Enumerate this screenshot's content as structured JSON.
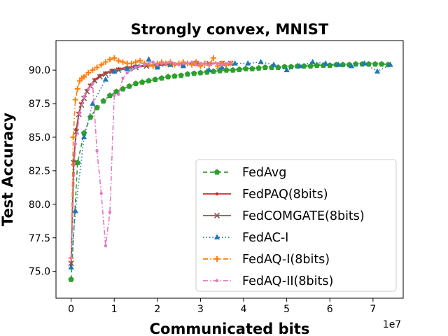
{
  "chart_data": {
    "type": "line",
    "title": "Strongly convex, MNIST",
    "xlabel": "Communicated bits",
    "ylabel": "Test Accuracy",
    "x_multiplier_label": "1e7",
    "xlim": [
      -0.35,
      7.7
    ],
    "ylim": [
      73.0,
      92.2
    ],
    "xticks": [
      0,
      1,
      2,
      3,
      4,
      5,
      6,
      7
    ],
    "xtick_labels": [
      "0",
      "1",
      "2",
      "3",
      "4",
      "5",
      "6",
      "7"
    ],
    "yticks": [
      75.0,
      77.5,
      80.0,
      82.5,
      85.0,
      87.5,
      90.0
    ],
    "ytick_labels": [
      "75.0",
      "77.5",
      "80.0",
      "82.5",
      "85.0",
      "87.5",
      "90.0"
    ],
    "grid": false,
    "legend_position": "lower-right",
    "series": [
      {
        "name": "FedAvg",
        "color": "#2ca02c",
        "linestyle": "dashed",
        "marker": "pentagon",
        "x": [
          0.0,
          0.15,
          0.3,
          0.45,
          0.6,
          0.75,
          0.9,
          1.05,
          1.2,
          1.35,
          1.5,
          1.65,
          1.8,
          1.95,
          2.1,
          2.25,
          2.4,
          2.55,
          2.7,
          2.85,
          3.0,
          3.15,
          3.3,
          3.45,
          3.6,
          3.75,
          3.9,
          4.05,
          4.2,
          4.35,
          4.5,
          4.65,
          4.8,
          4.95,
          5.1,
          5.25,
          5.4,
          5.55,
          5.7,
          5.85,
          6.0,
          6.15,
          6.3,
          6.45,
          6.6,
          6.75,
          6.9,
          7.05,
          7.2,
          7.35
        ],
        "y": [
          74.4,
          83.1,
          85.3,
          86.5,
          87.2,
          87.7,
          88.1,
          88.4,
          88.6,
          88.8,
          89.0,
          89.1,
          89.2,
          89.3,
          89.4,
          89.5,
          89.55,
          89.6,
          89.7,
          89.75,
          89.8,
          89.85,
          89.9,
          89.95,
          90.0,
          90.0,
          90.05,
          90.1,
          90.1,
          90.15,
          90.2,
          90.2,
          90.2,
          90.25,
          90.25,
          90.3,
          90.3,
          90.3,
          90.35,
          90.35,
          90.35,
          90.4,
          90.4,
          90.4,
          90.45,
          90.45,
          90.45,
          90.45,
          90.45,
          90.4
        ]
      },
      {
        "name": "FedPAQ(8bits)",
        "color": "#d62728",
        "linestyle": "solid",
        "marker": "point",
        "x": [
          0.0,
          0.06,
          0.12,
          0.18,
          0.24,
          0.3,
          0.37,
          0.45,
          0.55,
          0.67,
          0.8,
          0.95,
          1.1,
          1.3,
          1.5,
          1.75,
          2.0,
          2.3,
          2.6,
          2.9,
          3.2,
          3.5,
          3.7
        ],
        "y": [
          75.5,
          83.2,
          85.6,
          86.8,
          87.5,
          88.0,
          88.5,
          88.9,
          89.3,
          89.6,
          89.8,
          90.0,
          90.1,
          90.2,
          90.3,
          90.35,
          90.4,
          90.45,
          90.5,
          90.5,
          90.5,
          90.5,
          90.5
        ]
      },
      {
        "name": "FedCOMGATE(8bits)",
        "color": "#8c564b",
        "linestyle": "solid",
        "marker": "x",
        "x": [
          0.0,
          0.06,
          0.12,
          0.18,
          0.24,
          0.3,
          0.37,
          0.45,
          0.55,
          0.67,
          0.8,
          0.95,
          1.1,
          1.3,
          1.5,
          1.75,
          2.0,
          2.3,
          2.6,
          2.9,
          3.2,
          3.5,
          3.7
        ],
        "y": [
          75.6,
          83.1,
          85.4,
          86.7,
          87.4,
          87.9,
          88.4,
          88.8,
          89.2,
          89.5,
          89.7,
          89.9,
          90.0,
          90.1,
          90.2,
          90.3,
          90.35,
          90.4,
          90.45,
          90.5,
          90.5,
          90.5,
          90.5
        ]
      },
      {
        "name": "FedAC-I",
        "color": "#1f77b4",
        "linestyle": "dotted",
        "marker": "triangle",
        "x": [
          0.0,
          0.1,
          0.3,
          0.5,
          0.8,
          1.0,
          1.3,
          1.5,
          1.8,
          2.0,
          2.3,
          2.6,
          2.9,
          3.2,
          3.5,
          3.8,
          4.1,
          4.4,
          4.7,
          5.0,
          5.3,
          5.6,
          5.9,
          6.2,
          6.5,
          6.8,
          7.1,
          7.4
        ],
        "y": [
          75.3,
          79.5,
          85.0,
          87.5,
          89.3,
          89.9,
          90.1,
          90.3,
          90.8,
          90.2,
          90.4,
          90.3,
          90.6,
          90.0,
          90.2,
          90.5,
          90.5,
          90.6,
          90.4,
          90.0,
          90.3,
          90.6,
          90.5,
          90.4,
          90.3,
          90.5,
          89.9,
          90.4
        ]
      },
      {
        "name": "FedAQ-I(8bits)",
        "color": "#ff7f0e",
        "linestyle": "dashdot",
        "marker": "plus",
        "x": [
          0.0,
          0.05,
          0.1,
          0.15,
          0.2,
          0.25,
          0.3,
          0.4,
          0.5,
          0.6,
          0.7,
          0.8,
          0.9,
          1.0,
          1.1,
          1.2,
          1.3,
          1.4,
          1.5,
          1.6,
          1.7,
          1.8,
          1.9,
          2.0,
          2.1,
          2.2,
          2.3,
          2.4,
          2.5,
          2.6,
          2.7,
          2.8,
          2.9,
          3.0,
          3.1,
          3.2,
          3.3,
          3.4,
          3.5,
          3.6,
          3.7
        ],
        "y": [
          76.0,
          85.0,
          87.8,
          88.6,
          89.2,
          89.4,
          89.5,
          89.8,
          90.0,
          90.2,
          90.4,
          90.6,
          90.8,
          90.9,
          90.7,
          90.6,
          90.5,
          90.5,
          90.6,
          90.7,
          90.5,
          90.4,
          90.3,
          90.5,
          90.6,
          90.5,
          90.6,
          90.4,
          90.5,
          90.6,
          90.5,
          90.4,
          90.6,
          90.3,
          90.5,
          90.4,
          90.9,
          90.3,
          90.5,
          90.4,
          90.5
        ]
      },
      {
        "name": "FedAQ-II(8bits)",
        "color": "#e377c2",
        "linestyle": "dashdot",
        "marker": "point",
        "x": [
          0.0,
          0.1,
          0.2,
          0.3,
          0.4,
          0.5,
          0.6,
          0.7,
          0.8,
          0.9,
          1.0,
          1.1,
          1.2,
          1.3,
          1.4,
          1.5,
          1.6,
          1.7,
          1.8,
          1.9,
          2.0,
          2.1,
          2.2,
          2.3,
          2.4,
          2.5,
          2.6,
          2.7,
          2.8,
          2.9,
          3.0,
          3.1,
          3.2,
          3.3,
          3.4,
          3.5,
          3.6,
          3.7
        ],
        "y": [
          76.0,
          84.5,
          86.8,
          88.0,
          88.6,
          89.0,
          84.0,
          80.8,
          76.9,
          79.4,
          88.1,
          88.2,
          89.4,
          89.8,
          90.0,
          90.2,
          90.3,
          90.4,
          90.5,
          90.6,
          90.4,
          90.5,
          90.5,
          90.6,
          90.5,
          90.4,
          90.5,
          90.5,
          90.6,
          90.4,
          90.5,
          90.5,
          90.4,
          90.5,
          90.5,
          90.4,
          90.5,
          90.5
        ]
      }
    ]
  }
}
